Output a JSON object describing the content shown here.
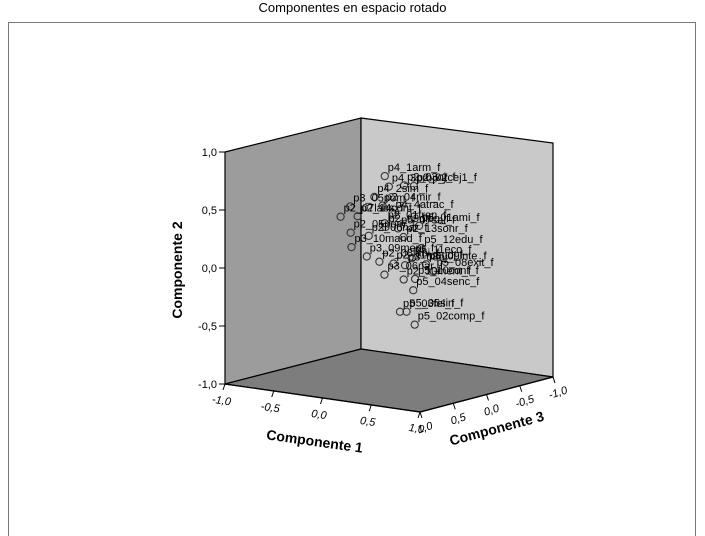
{
  "chart_data": {
    "type": "scatter",
    "title": "Componentes en espacio rotado",
    "xlabel": "Componente 1",
    "ylabel": "Componente 2",
    "zlabel": "Componente 3",
    "xlim": [
      -1.0,
      1.0
    ],
    "ylim": [
      -1.0,
      1.0
    ],
    "zlim": [
      -1.0,
      1.0
    ],
    "x_ticks": [
      "-1,0",
      "-0,5",
      "0,0",
      "0,5",
      "1,0"
    ],
    "y_ticks": [
      "-1,0",
      "-0,5",
      "0,0",
      "0,5",
      "1,0"
    ],
    "z_ticks": [
      "-1,0",
      "-0,5",
      "0,0",
      "0,5",
      "1,0"
    ],
    "grid": false,
    "points": [
      {
        "label": "p4_1arm_f",
        "x": -0.02,
        "y": 0.78,
        "z": 0.05
      },
      {
        "label": "p4_3prop_f",
        "x": -0.08,
        "y": 0.66,
        "z": -0.1
      },
      {
        "label": "p2_03oj_f",
        "x": 0.05,
        "y": 0.68,
        "z": -0.14
      },
      {
        "label": "p2_02cej1_f",
        "x": 0.28,
        "y": 0.73,
        "z": 0.05
      },
      {
        "label": "p4_2sim_f",
        "x": -0.12,
        "y": 0.59,
        "z": 0.06
      },
      {
        "label": "p2_04mir_f",
        "x": -0.05,
        "y": 0.52,
        "z": 0.04
      },
      {
        "label": "p4_4atrac_f",
        "x": 0.08,
        "y": 0.48,
        "z": 0.08
      },
      {
        "label": "p3_05pom_f",
        "x": -0.45,
        "y": 0.45,
        "z": -0.06
      },
      {
        "label": "p2_14cont_f",
        "x": -0.3,
        "y": 0.4,
        "z": 0.05
      },
      {
        "label": "p2_01fren_f",
        "x": 0.0,
        "y": 0.38,
        "z": 0.08
      },
      {
        "label": "p5_07sal_f",
        "x": 0.22,
        "y": 0.38,
        "z": 0.2
      },
      {
        "label": "p5_01ami_f",
        "x": 0.47,
        "y": 0.44,
        "z": 0.25
      },
      {
        "label": "p2_07labs_f",
        "x": -0.55,
        "y": 0.35,
        "z": -0.06
      },
      {
        "label": "p2_09dien_f",
        "x": -0.08,
        "y": 0.32,
        "z": -0.05
      },
      {
        "label": "p2_13sonr_f",
        "x": 0.18,
        "y": 0.28,
        "z": 0.06
      },
      {
        "label": "p2_05pom_f",
        "x": -0.46,
        "y": 0.22,
        "z": -0.08
      },
      {
        "label": "p2_06nar_f",
        "x": -0.26,
        "y": 0.22,
        "z": -0.06
      },
      {
        "label": "p5_12edu_f",
        "x": 0.46,
        "y": 0.24,
        "z": 0.2
      },
      {
        "label": "p3_10mand_f",
        "x": -0.56,
        "y": 0.06,
        "z": -0.24
      },
      {
        "label": "p3_09ment_f",
        "x": -0.28,
        "y": 0.04,
        "z": -0.06
      },
      {
        "label": "p5_11eco_f",
        "x": 0.36,
        "y": 0.14,
        "z": 0.2
      },
      {
        "label": "p5_09inte_f",
        "x": 0.61,
        "y": 0.14,
        "z": 0.35
      },
      {
        "label": "p5_08exit_f",
        "x": 0.6,
        "y": 0.06,
        "z": 0.22
      },
      {
        "label": "p2_08labi_f",
        "x": -0.3,
        "y": -0.04,
        "z": -0.28
      },
      {
        "label": "p2_11mand_f",
        "x": -0.1,
        "y": -0.02,
        "z": -0.2
      },
      {
        "label": "p3_08oj_f",
        "x": 0.08,
        "y": 0.0,
        "z": -0.11
      },
      {
        "label": "p5_10conf_f",
        "x": 0.32,
        "y": -0.06,
        "z": 0.09
      },
      {
        "label": "p3_06nar_f",
        "x": -0.2,
        "y": -0.13,
        "z": -0.21
      },
      {
        "label": "p2_10ment_f",
        "x": 0.08,
        "y": -0.12,
        "z": -0.09
      },
      {
        "label": "p5_04senc_f",
        "x": 0.24,
        "y": -0.18,
        "z": 0.0
      },
      {
        "label": "p5_06sin_f",
        "x": 0.15,
        "y": -0.38,
        "z": -0.03
      },
      {
        "label": "p5_03fel_f",
        "x": -0.04,
        "y": -0.43,
        "z": -0.21
      },
      {
        "label": "p5_02comp_f",
        "x": 0.18,
        "y": -0.5,
        "z": -0.11
      }
    ]
  }
}
